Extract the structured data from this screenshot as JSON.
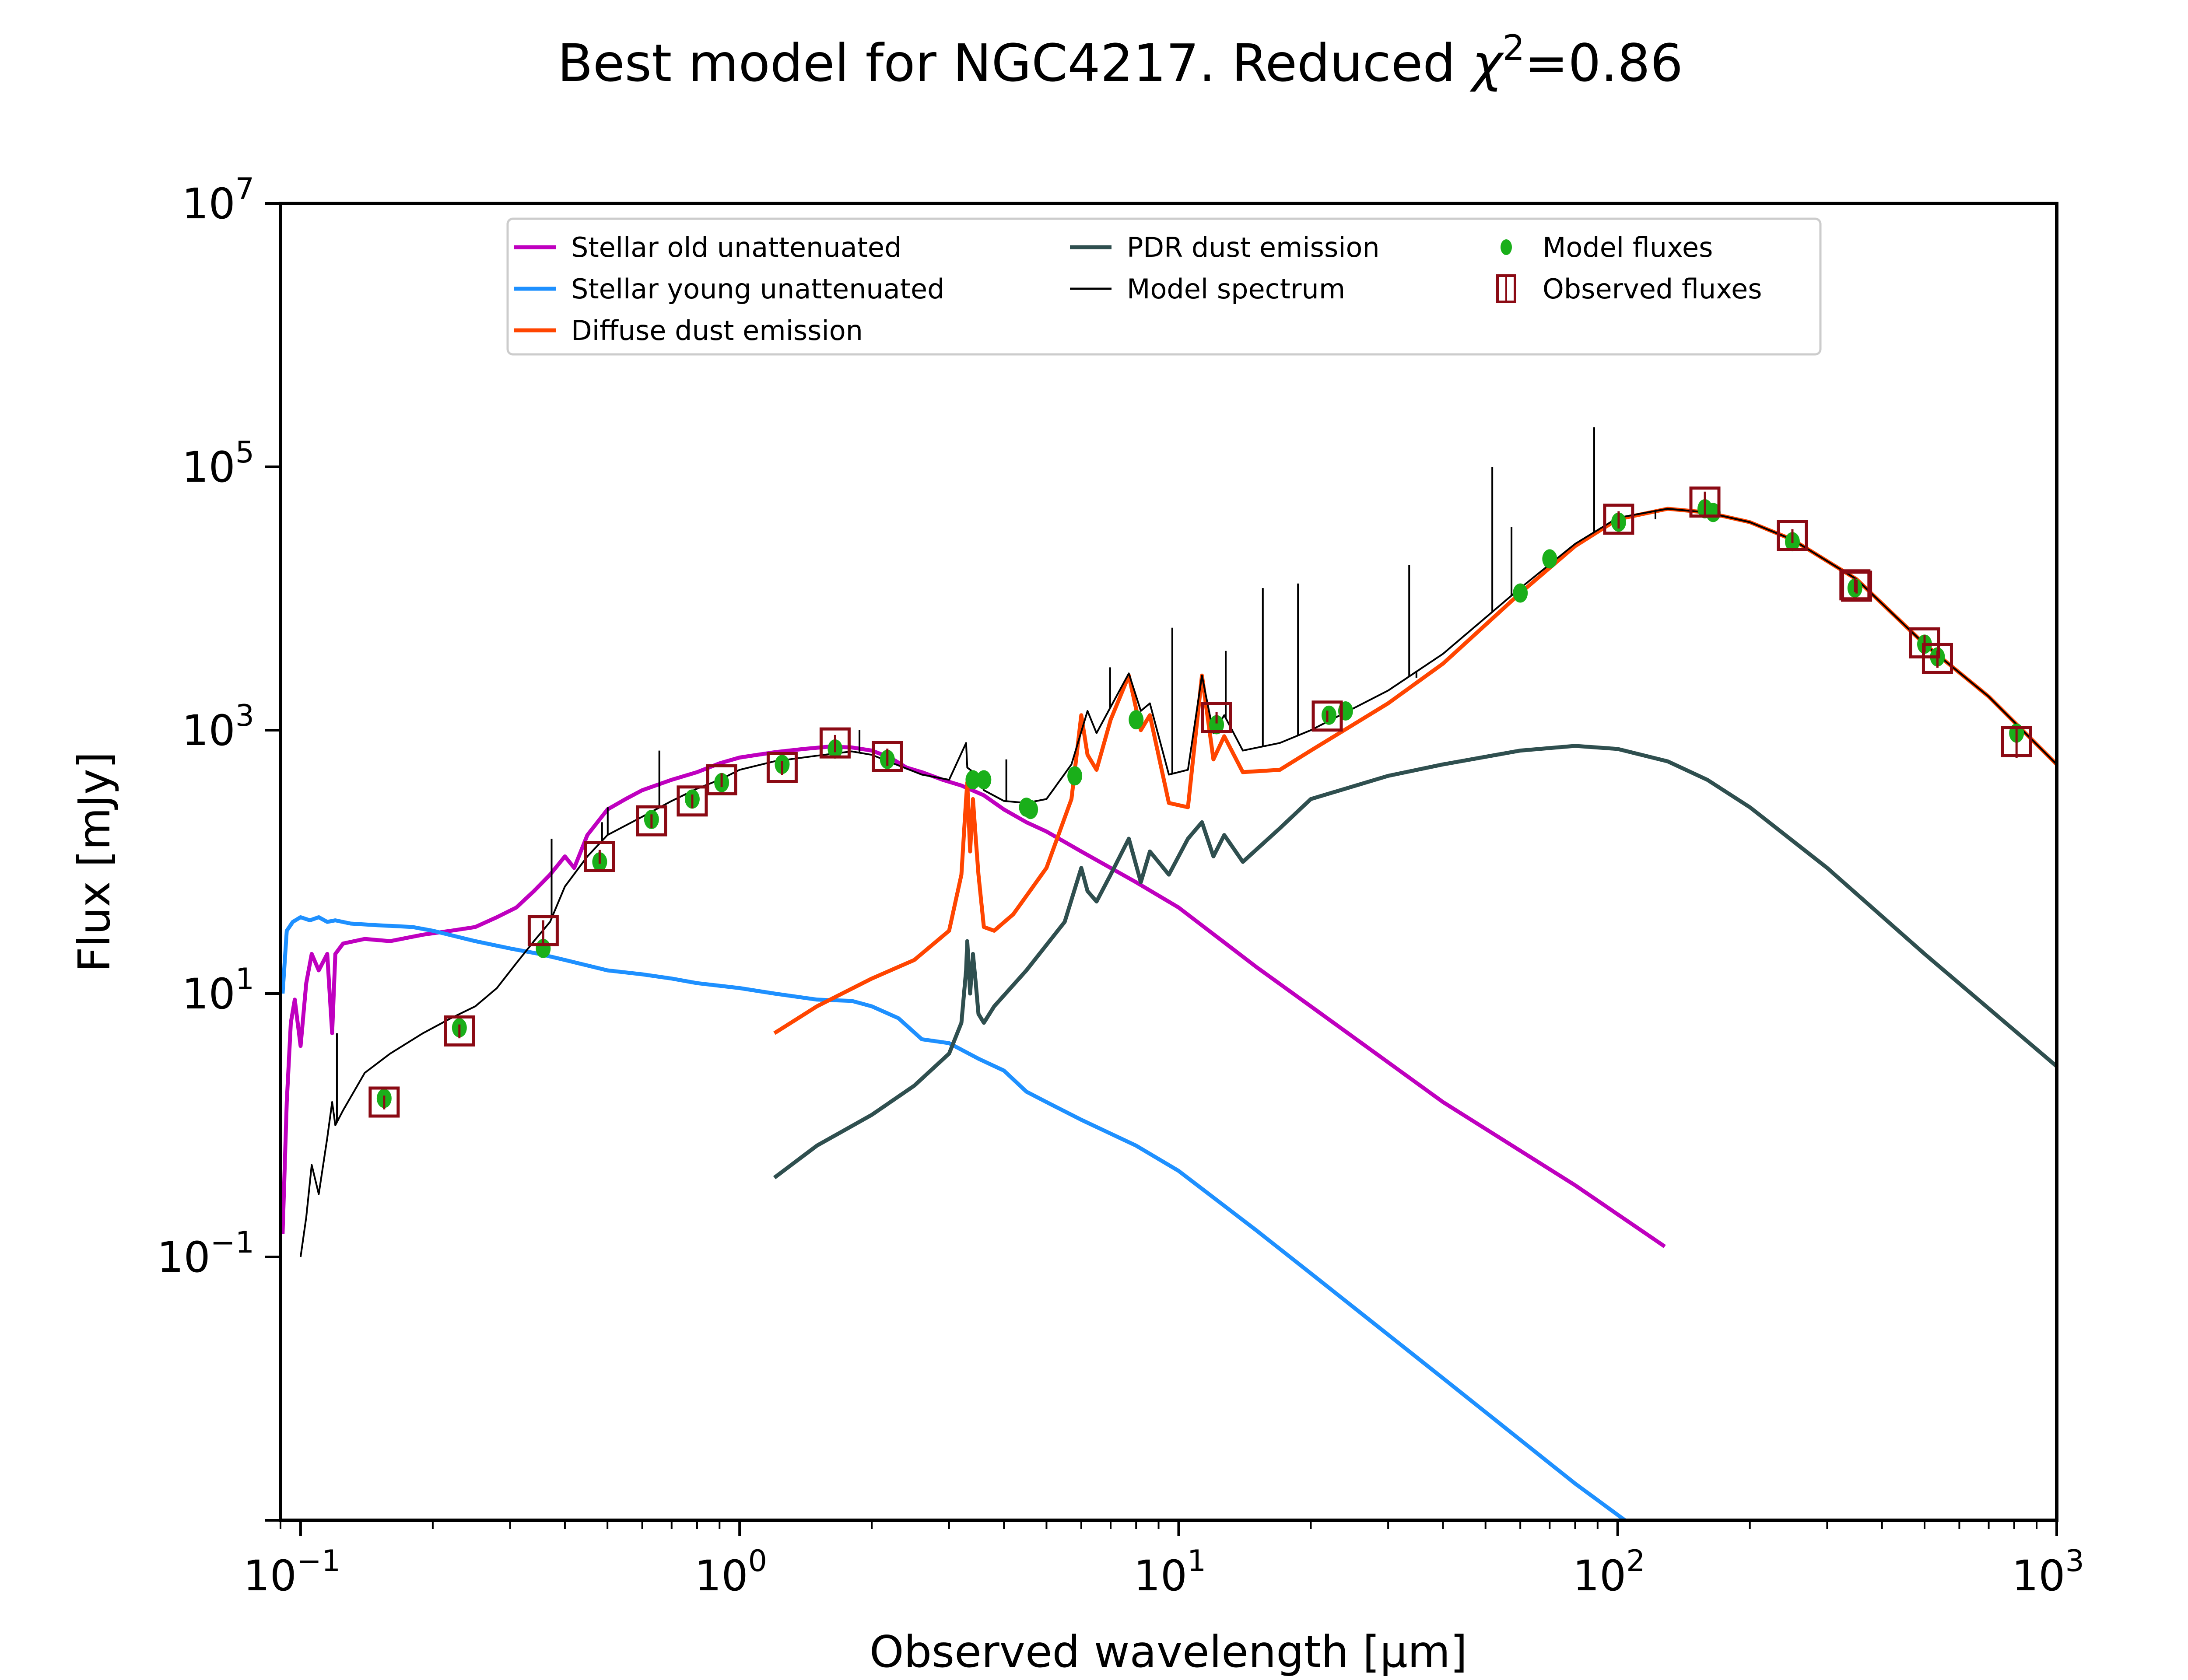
{
  "chart_data": {
    "type": "line",
    "title": "Best model for NGC4217. Reduced χ²=0.86",
    "title_parts": {
      "main": "Best model for NGC4217. Reduced ",
      "chi": "χ",
      "sup": "2",
      "value": "=0.86"
    },
    "xlabel": "Observed wavelength [μm]",
    "ylabel": "Flux [mJy]",
    "xscale": "log",
    "yscale": "log",
    "xlim": [
      0.09,
      1000
    ],
    "ylim": [
      0.001,
      10000000
    ],
    "grid": false,
    "legend_position": "top-center",
    "x_ticks": [
      {
        "value": 0.1,
        "base": "10",
        "exp": "−1"
      },
      {
        "value": 1,
        "base": "10",
        "exp": "0"
      },
      {
        "value": 10,
        "base": "10",
        "exp": "1"
      },
      {
        "value": 100,
        "base": "10",
        "exp": "2"
      },
      {
        "value": 1000,
        "base": "10",
        "exp": "3"
      }
    ],
    "y_ticks": [
      {
        "value": 0.1,
        "base": "10",
        "exp": "−1"
      },
      {
        "value": 10,
        "base": "10",
        "exp": "1"
      },
      {
        "value": 1000,
        "base": "10",
        "exp": "3"
      },
      {
        "value": 100000,
        "base": "10",
        "exp": "5"
      },
      {
        "value": 10000000,
        "base": "10",
        "exp": "7"
      }
    ],
    "legend": [
      {
        "label": "Stellar old unattenuated",
        "color": "#bf00bf",
        "kind": "line"
      },
      {
        "label": "Stellar young unattenuated",
        "color": "#1e90ff",
        "kind": "line"
      },
      {
        "label": "Diffuse dust emission",
        "color": "#ff4500",
        "kind": "line"
      },
      {
        "label": "PDR dust emission",
        "color": "#2f4f4f",
        "kind": "line"
      },
      {
        "label": "Model spectrum",
        "color": "#000000",
        "kind": "thinline"
      },
      {
        "label": "Model fluxes",
        "color": "#1aaf1a",
        "kind": "dot"
      },
      {
        "label": "Observed fluxes",
        "color": "#8b0a14",
        "kind": "square"
      }
    ],
    "series": [
      {
        "name": "Stellar old unattenuated",
        "color": "#bf00bf",
        "x": [
          0.091,
          0.093,
          0.095,
          0.097,
          0.1,
          0.103,
          0.106,
          0.11,
          0.115,
          0.118,
          0.12,
          0.125,
          0.14,
          0.16,
          0.19,
          0.22,
          0.25,
          0.28,
          0.31,
          0.34,
          0.37,
          0.4,
          0.42,
          0.45,
          0.5,
          0.55,
          0.6,
          0.7,
          0.8,
          0.9,
          1.0,
          1.2,
          1.4,
          1.6,
          1.8,
          2.0,
          2.2,
          2.4,
          2.6,
          2.9,
          3.2,
          3.6,
          4.0,
          4.5,
          5.0,
          6.0,
          8.0,
          10,
          15,
          20,
          40,
          80,
          128
        ],
        "y": [
          0.15,
          1.5,
          6,
          9,
          4,
          12,
          20,
          15,
          20,
          5,
          20,
          24,
          26,
          25,
          28,
          30,
          32,
          38,
          45,
          60,
          80,
          110,
          90,
          160,
          250,
          300,
          350,
          420,
          480,
          560,
          620,
          680,
          720,
          750,
          740,
          700,
          620,
          520,
          480,
          420,
          380,
          320,
          250,
          200,
          170,
          120,
          70,
          45,
          16,
          8,
          1.5,
          0.35,
          0.12
        ]
      },
      {
        "name": "Stellar young unattenuated",
        "color": "#1e90ff",
        "x": [
          0.091,
          0.093,
          0.096,
          0.1,
          0.105,
          0.11,
          0.115,
          0.12,
          0.13,
          0.15,
          0.18,
          0.2,
          0.25,
          0.3,
          0.35,
          0.4,
          0.5,
          0.6,
          0.7,
          0.8,
          1.0,
          1.2,
          1.5,
          1.8,
          2.0,
          2.3,
          2.6,
          3.0,
          3.5,
          4.0,
          4.5,
          5.0,
          6.0,
          8.0,
          10,
          15,
          20,
          40,
          80,
          128
        ],
        "y": [
          10,
          30,
          35,
          38,
          36,
          38,
          35,
          36,
          34,
          33,
          32,
          30,
          25,
          22,
          20,
          18,
          15,
          14,
          13,
          12,
          11,
          10,
          9.0,
          8.8,
          8.0,
          6.5,
          4.5,
          4.2,
          3.2,
          2.6,
          1.8,
          1.5,
          1.1,
          0.7,
          0.45,
          0.16,
          0.075,
          0.012,
          0.0019,
          0.0006
        ]
      },
      {
        "name": "Diffuse dust emission",
        "color": "#ff4500",
        "x": [
          1.2,
          1.5,
          2.0,
          2.5,
          3.0,
          3.2,
          3.28,
          3.3,
          3.35,
          3.4,
          3.45,
          3.5,
          3.6,
          3.8,
          4.2,
          5.0,
          5.7,
          6.0,
          6.2,
          6.5,
          7.0,
          7.7,
          8.2,
          8.6,
          9.5,
          10.5,
          11.3,
          12.0,
          12.7,
          14,
          17,
          20,
          30,
          40,
          60,
          80,
          100,
          130,
          160,
          200,
          250,
          350,
          500,
          700,
          1000
        ],
        "y": [
          5,
          8,
          13,
          18,
          30,
          80,
          300,
          400,
          120,
          300,
          150,
          80,
          32,
          30,
          40,
          90,
          300,
          1300,
          650,
          500,
          1200,
          2600,
          1000,
          1300,
          280,
          260,
          2600,
          600,
          900,
          480,
          500,
          700,
          1600,
          3200,
          11000,
          25000,
          40000,
          48000,
          45000,
          38000,
          28000,
          14000,
          4500,
          1800,
          550
        ]
      },
      {
        "name": "PDR dust emission",
        "color": "#2f4f4f",
        "x": [
          1.2,
          1.5,
          2.0,
          2.5,
          3.0,
          3.2,
          3.28,
          3.3,
          3.35,
          3.4,
          3.45,
          3.5,
          3.6,
          3.8,
          4.5,
          5.5,
          6.0,
          6.2,
          6.5,
          7.0,
          7.7,
          8.2,
          8.6,
          9.5,
          10.5,
          11.3,
          12.0,
          12.7,
          14,
          17,
          20,
          30,
          40,
          60,
          80,
          100,
          130,
          160,
          200,
          300,
          500,
          1000
        ],
        "y": [
          0.4,
          0.7,
          1.2,
          2.0,
          3.5,
          6,
          15,
          25,
          10,
          20,
          12,
          7,
          6,
          8,
          15,
          35,
          90,
          60,
          50,
          80,
          150,
          70,
          120,
          80,
          150,
          200,
          110,
          160,
          100,
          180,
          300,
          450,
          550,
          700,
          760,
          720,
          580,
          420,
          260,
          90,
          20,
          2.8
        ]
      },
      {
        "name": "Model spectrum",
        "color": "#000000",
        "x": [
          0.1,
          0.103,
          0.106,
          0.11,
          0.115,
          0.118,
          0.12,
          0.125,
          0.14,
          0.16,
          0.19,
          0.22,
          0.25,
          0.28,
          0.31,
          0.34,
          0.37,
          0.4,
          0.45,
          0.5,
          0.6,
          0.7,
          0.8,
          0.9,
          1.0,
          1.2,
          1.5,
          1.8,
          2.0,
          2.3,
          2.6,
          3.0,
          3.28,
          3.3,
          3.5,
          3.6,
          4.0,
          4.5,
          5.0,
          5.7,
          6.2,
          6.5,
          7.0,
          7.7,
          8.2,
          8.6,
          9.5,
          10.5,
          11.3,
          12.0,
          12.7,
          14,
          17,
          20,
          30,
          40,
          60,
          80,
          100,
          130,
          160,
          200,
          250,
          350,
          500,
          700,
          1000
        ],
        "y": [
          0.1,
          0.2,
          0.5,
          0.3,
          0.8,
          1.5,
          1.0,
          1.3,
          2.5,
          3.5,
          5,
          6.5,
          8,
          11,
          17,
          25,
          35,
          65,
          110,
          160,
          220,
          290,
          360,
          420,
          500,
          580,
          640,
          690,
          650,
          540,
          460,
          420,
          800,
          520,
          450,
          350,
          290,
          280,
          300,
          550,
          1400,
          950,
          1500,
          2700,
          1400,
          1600,
          460,
          500,
          2600,
          950,
          1300,
          700,
          800,
          1000,
          2000,
          3800,
          12000,
          26000,
          41000,
          48000,
          45000,
          38000,
          28000,
          14000,
          4500,
          1800,
          550
        ]
      }
    ],
    "emission_lines": {
      "x": [
        0.121,
        0.373,
        0.486,
        0.5007,
        0.6563,
        1.875,
        4.05,
        6.98,
        9.67,
        12.8,
        15.55,
        18.7,
        33.5,
        34.8,
        36.0,
        51.8,
        57.3,
        88.4,
        121.9,
        157.7
      ],
      "peak": [
        5,
        150,
        200,
        260,
        700,
        1000,
        600,
        3000,
        6000,
        4000,
        12000,
        13000,
        18000,
        2500,
        3000,
        100000,
        35000,
        200000,
        40000,
        50000
      ]
    },
    "model_fluxes": {
      "x": [
        0.155,
        0.23,
        0.357,
        0.48,
        0.63,
        0.78,
        0.91,
        1.25,
        1.65,
        2.17,
        3.4,
        3.6,
        4.5,
        4.6,
        5.8,
        8.0,
        12.2,
        22.0,
        24.0,
        60,
        70,
        100.5,
        158,
        165,
        250,
        347,
        500,
        535,
        810
      ],
      "y": [
        1.6,
        5.5,
        22,
        100,
        210,
        300,
        400,
        550,
        720,
        600,
        420,
        420,
        260,
        250,
        450,
        1200,
        1100,
        1300,
        1400,
        11000,
        20000,
        38000,
        48000,
        45000,
        27000,
        12000,
        4500,
        3600,
        950
      ]
    },
    "observed_fluxes": {
      "x": [
        0.155,
        0.23,
        0.357,
        0.48,
        0.63,
        0.78,
        0.91,
        1.25,
        1.65,
        2.17,
        12.2,
        21.8,
        100.5,
        158,
        250,
        347,
        350,
        500,
        535,
        810
      ],
      "y": [
        1.5,
        5.2,
        30,
        110,
        205,
        290,
        420,
        520,
        800,
        630,
        1250,
        1280,
        40000,
        54000,
        30000,
        12700,
        12400,
        4600,
        3500,
        820
      ],
      "err_frac": [
        0.12,
        0.12,
        0.2,
        0.12,
        0.12,
        0.12,
        0.12,
        0.12,
        0.15,
        0.15,
        0.1,
        0.1,
        0.15,
        0.2,
        0.12,
        0.12,
        0.12,
        0.15,
        0.15,
        0.25
      ]
    }
  }
}
